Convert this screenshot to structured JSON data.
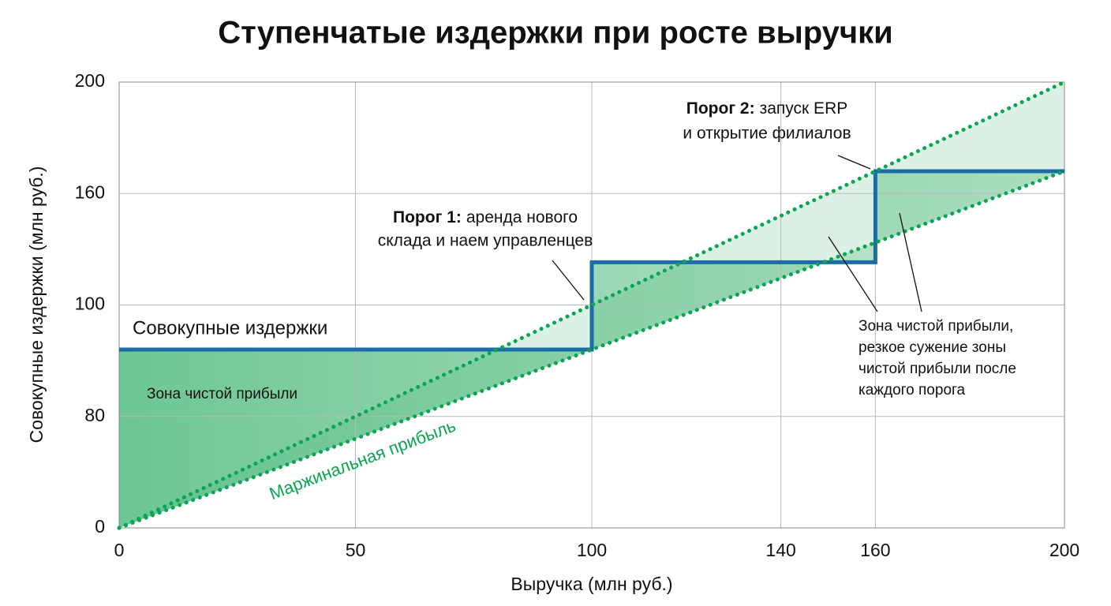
{
  "chart_data": {
    "type": "line",
    "title": "Ступенчатые издержки при росте выручки",
    "x_label": "Выручка (млн руб.)",
    "y_label": "Совокупные издержки (млн руб.)",
    "xlim": [
      0,
      200
    ],
    "xticks": [
      0,
      50,
      100,
      140,
      160,
      200
    ],
    "ylim": [
      0,
      200
    ],
    "yticks": [
      0,
      80,
      100,
      160,
      200
    ],
    "grid": true,
    "series": [
      {
        "name": "Совокупные издержки",
        "color": "#1b6ea5",
        "x": [
          0,
          100,
          100,
          160,
          160,
          200
        ],
        "values": [
          92,
          92,
          123,
          123,
          168,
          168
        ]
      },
      {
        "name": "Маржинальная прибыль",
        "color": "#0aa552",
        "x": [
          0,
          200
        ],
        "values": [
          0,
          168
        ]
      },
      {
        "color": "#0aa552",
        "x": [
          0,
          200
        ],
        "values": [
          0,
          200
        ]
      }
    ],
    "annotations": {
      "zone_left": "Зона чистой прибыли",
      "threshold1": {
        "bold": "Порог 1:",
        "line1": "аренда нового",
        "line2": "склада и наем управленцев"
      },
      "threshold2": {
        "bold": "Порог 2:",
        "line1": "запуск ERP",
        "line2": "и открытие филиалов"
      },
      "zone_right": [
        "Зона чистой прибыли,",
        "резкое сужение зоны",
        "чистой прибыли после",
        "каждого порога"
      ]
    }
  }
}
